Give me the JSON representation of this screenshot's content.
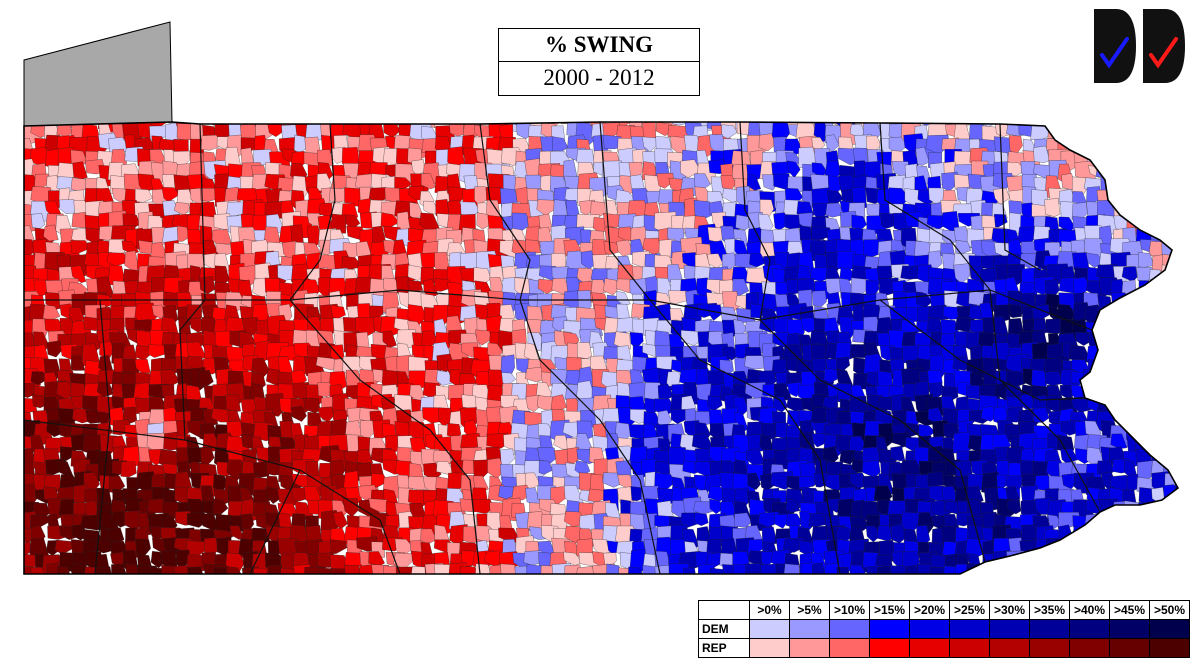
{
  "title": {
    "line1": "% SWING",
    "line2": "2000 - 2012"
  },
  "logos": [
    {
      "name": "dem-logo",
      "check_color": "#1a1aff"
    },
    {
      "name": "rep-logo",
      "check_color": "#ff1a1a"
    }
  ],
  "legend": {
    "thresholds": [
      ">0%",
      ">5%",
      ">10%",
      ">15%",
      ">20%",
      ">25%",
      ">30%",
      ">35%",
      ">40%",
      ">45%",
      ">50%"
    ],
    "rows": [
      {
        "label": "DEM",
        "colors": [
          "#ccccff",
          "#9999ff",
          "#6666ff",
          "#0000ff",
          "#0000e6",
          "#0000cc",
          "#0000b3",
          "#000099",
          "#000080",
          "#000066",
          "#00004d"
        ]
      },
      {
        "label": "REP",
        "colors": [
          "#ffcccc",
          "#ff9999",
          "#ff6666",
          "#ff0000",
          "#e60000",
          "#cc0000",
          "#b30000",
          "#990000",
          "#800000",
          "#660000",
          "#4d0000"
        ]
      }
    ]
  },
  "map": {
    "lake_color": "#a8a8a8",
    "border_color": "#000000"
  }
}
